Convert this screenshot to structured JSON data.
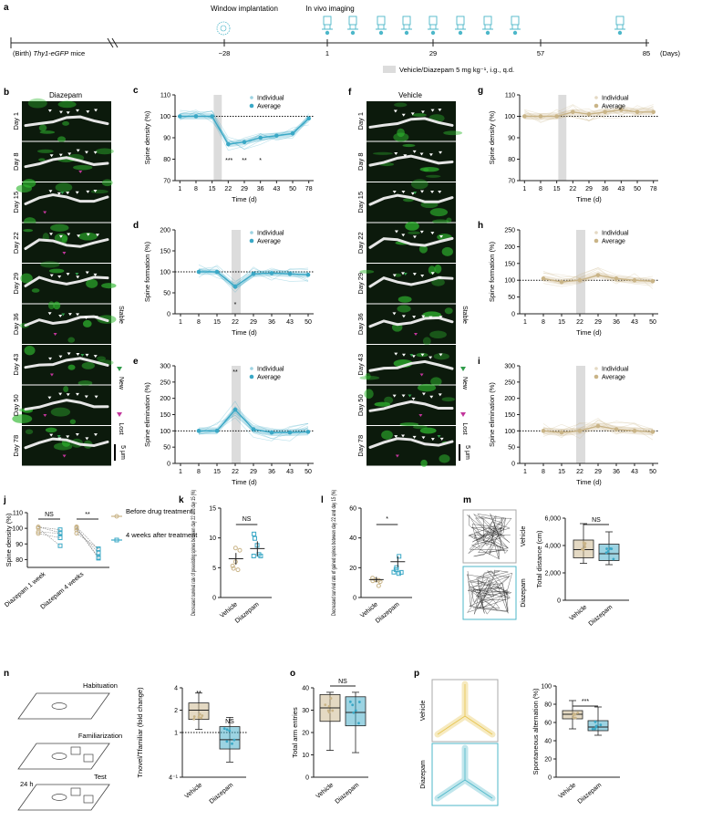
{
  "panel_letters": [
    "a",
    "b",
    "c",
    "d",
    "e",
    "f",
    "g",
    "h",
    "i",
    "j",
    "k",
    "l",
    "m",
    "n",
    "o",
    "p"
  ],
  "timeline": {
    "window_label": "Window implantation",
    "imaging_label": "In vivo imaging",
    "start_label": "(Birth) Thy1-eGFP mice",
    "start_prefix": "(Birth) ",
    "start_italic": "Thy1-eGFP",
    "start_suffix": " mice",
    "ticks": [
      "−28",
      "1",
      "29",
      "57",
      "85"
    ],
    "units": "(Days)",
    "legend": "Vehicle/Diazepam 5 mg kg⁻¹, i.g., q.d."
  },
  "image_panels": {
    "diazepam_title": "Diazepam",
    "vehicle_title": "Vehicle",
    "days": [
      "Day 1",
      "Day 8",
      "Day 15",
      "Day 22",
      "Day 29",
      "Day 36",
      "Day 43",
      "Day 50",
      "Day 78"
    ],
    "key_stable": "Stable",
    "key_new": "New",
    "key_lost": "Lost",
    "scale": "5 μm"
  },
  "colors": {
    "diazepam": "#3aa8c6",
    "vehicle": "#c9b487",
    "shade": "#dcdcdc",
    "image_bg": "#0c1a0c",
    "dendrite": "#e6e6e6",
    "green_signal": "#2fb82f",
    "lost_marker": "#c2359b",
    "new_marker": "#2f9c4a",
    "maze_vehicle": "#e6c34a",
    "maze_diazepam": "#4cb7c9"
  },
  "chart_data": [
    {
      "panel": "c",
      "type": "line",
      "xlabel": "Time (d)",
      "ylabel": "Spine density (%)",
      "ylim": [
        70,
        110
      ],
      "x_ticks": [
        "1",
        "8",
        "15",
        "22",
        "29",
        "36",
        "43",
        "50",
        "78"
      ],
      "y_ticks": [
        70,
        80,
        90,
        100,
        110
      ],
      "legend": [
        "Individual",
        "Average"
      ],
      "series": [
        {
          "name": "Average",
          "x": [
            1,
            8,
            15,
            22,
            29,
            36,
            43,
            50,
            78
          ],
          "y": [
            100,
            100,
            100,
            87,
            88,
            90,
            91,
            92,
            99
          ]
        }
      ],
      "annotations": [
        "***",
        "**",
        "*"
      ]
    },
    {
      "panel": "d",
      "type": "line",
      "xlabel": "Time (d)",
      "ylabel": "Spine formation (%)",
      "ylim": [
        0,
        200
      ],
      "x_ticks": [
        "1",
        "8",
        "15",
        "22",
        "29",
        "36",
        "43",
        "50"
      ],
      "y_ticks": [
        0,
        50,
        100,
        150,
        200
      ],
      "legend": [
        "Individual",
        "Average"
      ],
      "series": [
        {
          "name": "Average",
          "x": [
            8,
            15,
            22,
            29,
            36,
            43,
            50
          ],
          "y": [
            100,
            100,
            65,
            95,
            97,
            95,
            93
          ]
        }
      ],
      "annotations": [
        "*"
      ]
    },
    {
      "panel": "e",
      "type": "line",
      "xlabel": "Time (d)",
      "ylabel": "Spine elimination (%)",
      "ylim": [
        0,
        300
      ],
      "x_ticks": [
        "1",
        "8",
        "15",
        "22",
        "29",
        "36",
        "43",
        "50"
      ],
      "y_ticks": [
        0,
        50,
        100,
        150,
        200,
        250,
        300
      ],
      "legend": [
        "Individual",
        "Average"
      ],
      "series": [
        {
          "name": "Average",
          "x": [
            8,
            15,
            22,
            29,
            36,
            43,
            50
          ],
          "y": [
            100,
            100,
            165,
            105,
            95,
            95,
            97
          ]
        }
      ],
      "annotations": [
        "**"
      ]
    },
    {
      "panel": "g",
      "type": "line",
      "xlabel": "Time (d)",
      "ylabel": "Spine density (%)",
      "ylim": [
        70,
        110
      ],
      "x_ticks": [
        "1",
        "8",
        "15",
        "22",
        "29",
        "36",
        "43",
        "50",
        "78"
      ],
      "y_ticks": [
        70,
        80,
        90,
        100,
        110
      ],
      "legend": [
        "Individual",
        "Average"
      ],
      "series": [
        {
          "name": "Average",
          "x": [
            1,
            8,
            15,
            22,
            29,
            36,
            43,
            50,
            78
          ],
          "y": [
            100,
            100,
            100,
            102,
            101,
            102,
            103,
            102,
            102
          ]
        }
      ]
    },
    {
      "panel": "h",
      "type": "line",
      "xlabel": "Time (d)",
      "ylabel": "Spine formation (%)",
      "ylim": [
        0,
        250
      ],
      "x_ticks": [
        "1",
        "8",
        "15",
        "22",
        "29",
        "36",
        "43",
        "50"
      ],
      "y_ticks": [
        0,
        50,
        100,
        150,
        200,
        250
      ],
      "legend": [
        "Individual",
        "Average"
      ],
      "series": [
        {
          "name": "Average",
          "x": [
            8,
            15,
            22,
            29,
            36,
            43,
            50
          ],
          "y": [
            105,
            95,
            100,
            115,
            105,
            100,
            97
          ]
        }
      ]
    },
    {
      "panel": "i",
      "type": "line",
      "xlabel": "Time (d)",
      "ylabel": "Spine elimination (%)",
      "ylim": [
        0,
        300
      ],
      "x_ticks": [
        "1",
        "8",
        "15",
        "22",
        "29",
        "36",
        "43",
        "50"
      ],
      "y_ticks": [
        0,
        50,
        100,
        150,
        200,
        250,
        300
      ],
      "legend": [
        "Individual",
        "Average"
      ],
      "series": [
        {
          "name": "Average",
          "x": [
            8,
            15,
            22,
            29,
            36,
            43,
            50
          ],
          "y": [
            100,
            95,
            100,
            115,
            105,
            100,
            97
          ]
        }
      ]
    },
    {
      "panel": "j",
      "type": "scatter",
      "ylabel": "Spine density (%)",
      "ylim": [
        75,
        110
      ],
      "categories": [
        "Diazepam 1 week",
        "Diazepam 4 weeks"
      ],
      "y_ticks": [
        80,
        90,
        100,
        110
      ],
      "legend": [
        "Before drug treatment",
        "4 weeks after treatment"
      ],
      "annotations": [
        "NS",
        "**"
      ]
    },
    {
      "panel": "k",
      "type": "scatter",
      "ylabel": "Decreased survival rate of preexisting spines between day 22 and day 15 (%)",
      "ylim": [
        0,
        15
      ],
      "y_ticks": [
        0,
        5,
        10,
        15
      ],
      "categories": [
        "Vehicle",
        "Diazepam"
      ],
      "series": [
        {
          "name": "Vehicle",
          "mean": 6.5
        },
        {
          "name": "Diazepam",
          "mean": 8.2
        }
      ],
      "annotations": [
        "NS"
      ]
    },
    {
      "panel": "l",
      "type": "scatter",
      "ylabel": "Decreased survival rate of gained spines between day 22 and day 15 (%)",
      "ylim": [
        0,
        60
      ],
      "y_ticks": [
        0,
        20,
        40,
        60
      ],
      "categories": [
        "Vehicle",
        "Diazepam"
      ],
      "series": [
        {
          "name": "Vehicle",
          "mean": 12
        },
        {
          "name": "Diazepam",
          "mean": 24
        }
      ],
      "annotations": [
        "*"
      ]
    },
    {
      "panel": "m",
      "type": "box",
      "ylabel": "Total distance (cm)",
      "ylim": [
        0,
        6000
      ],
      "y_ticks": [
        "0",
        "2,000",
        "4,000",
        "6,000"
      ],
      "categories": [
        "Vehicle",
        "Diazepam"
      ],
      "annotations": [
        "NS"
      ],
      "track_labels": [
        "Vehicle",
        "Diazepam"
      ]
    },
    {
      "panel": "n",
      "type": "box",
      "ylabel": "Tnovel/Tfamiliar (fold change)",
      "y_ticks": [
        "4⁻¹",
        "1",
        "2",
        "4"
      ],
      "categories": [
        "Vehicle",
        "Diazepam"
      ],
      "annotations": [
        "**",
        "NS"
      ],
      "stages": [
        "Habituation",
        "Familiarization",
        "Test"
      ],
      "interval": "24 h"
    },
    {
      "panel": "o",
      "type": "box",
      "ylabel": "Total arm entries",
      "ylim": [
        0,
        40
      ],
      "y_ticks": [
        0,
        10,
        20,
        30,
        40
      ],
      "categories": [
        "Vehicle",
        "Diazepam"
      ],
      "annotations": [
        "NS"
      ]
    },
    {
      "panel": "p",
      "type": "box",
      "ylabel": "Spontaneous alternation (%)",
      "ylim": [
        0,
        100
      ],
      "y_ticks": [
        0,
        20,
        40,
        60,
        80,
        100
      ],
      "categories": [
        "Vehicle",
        "Diazepam"
      ],
      "annotations": [
        "***"
      ],
      "maze_labels": [
        "Vehicle",
        "Diazepam"
      ]
    }
  ]
}
